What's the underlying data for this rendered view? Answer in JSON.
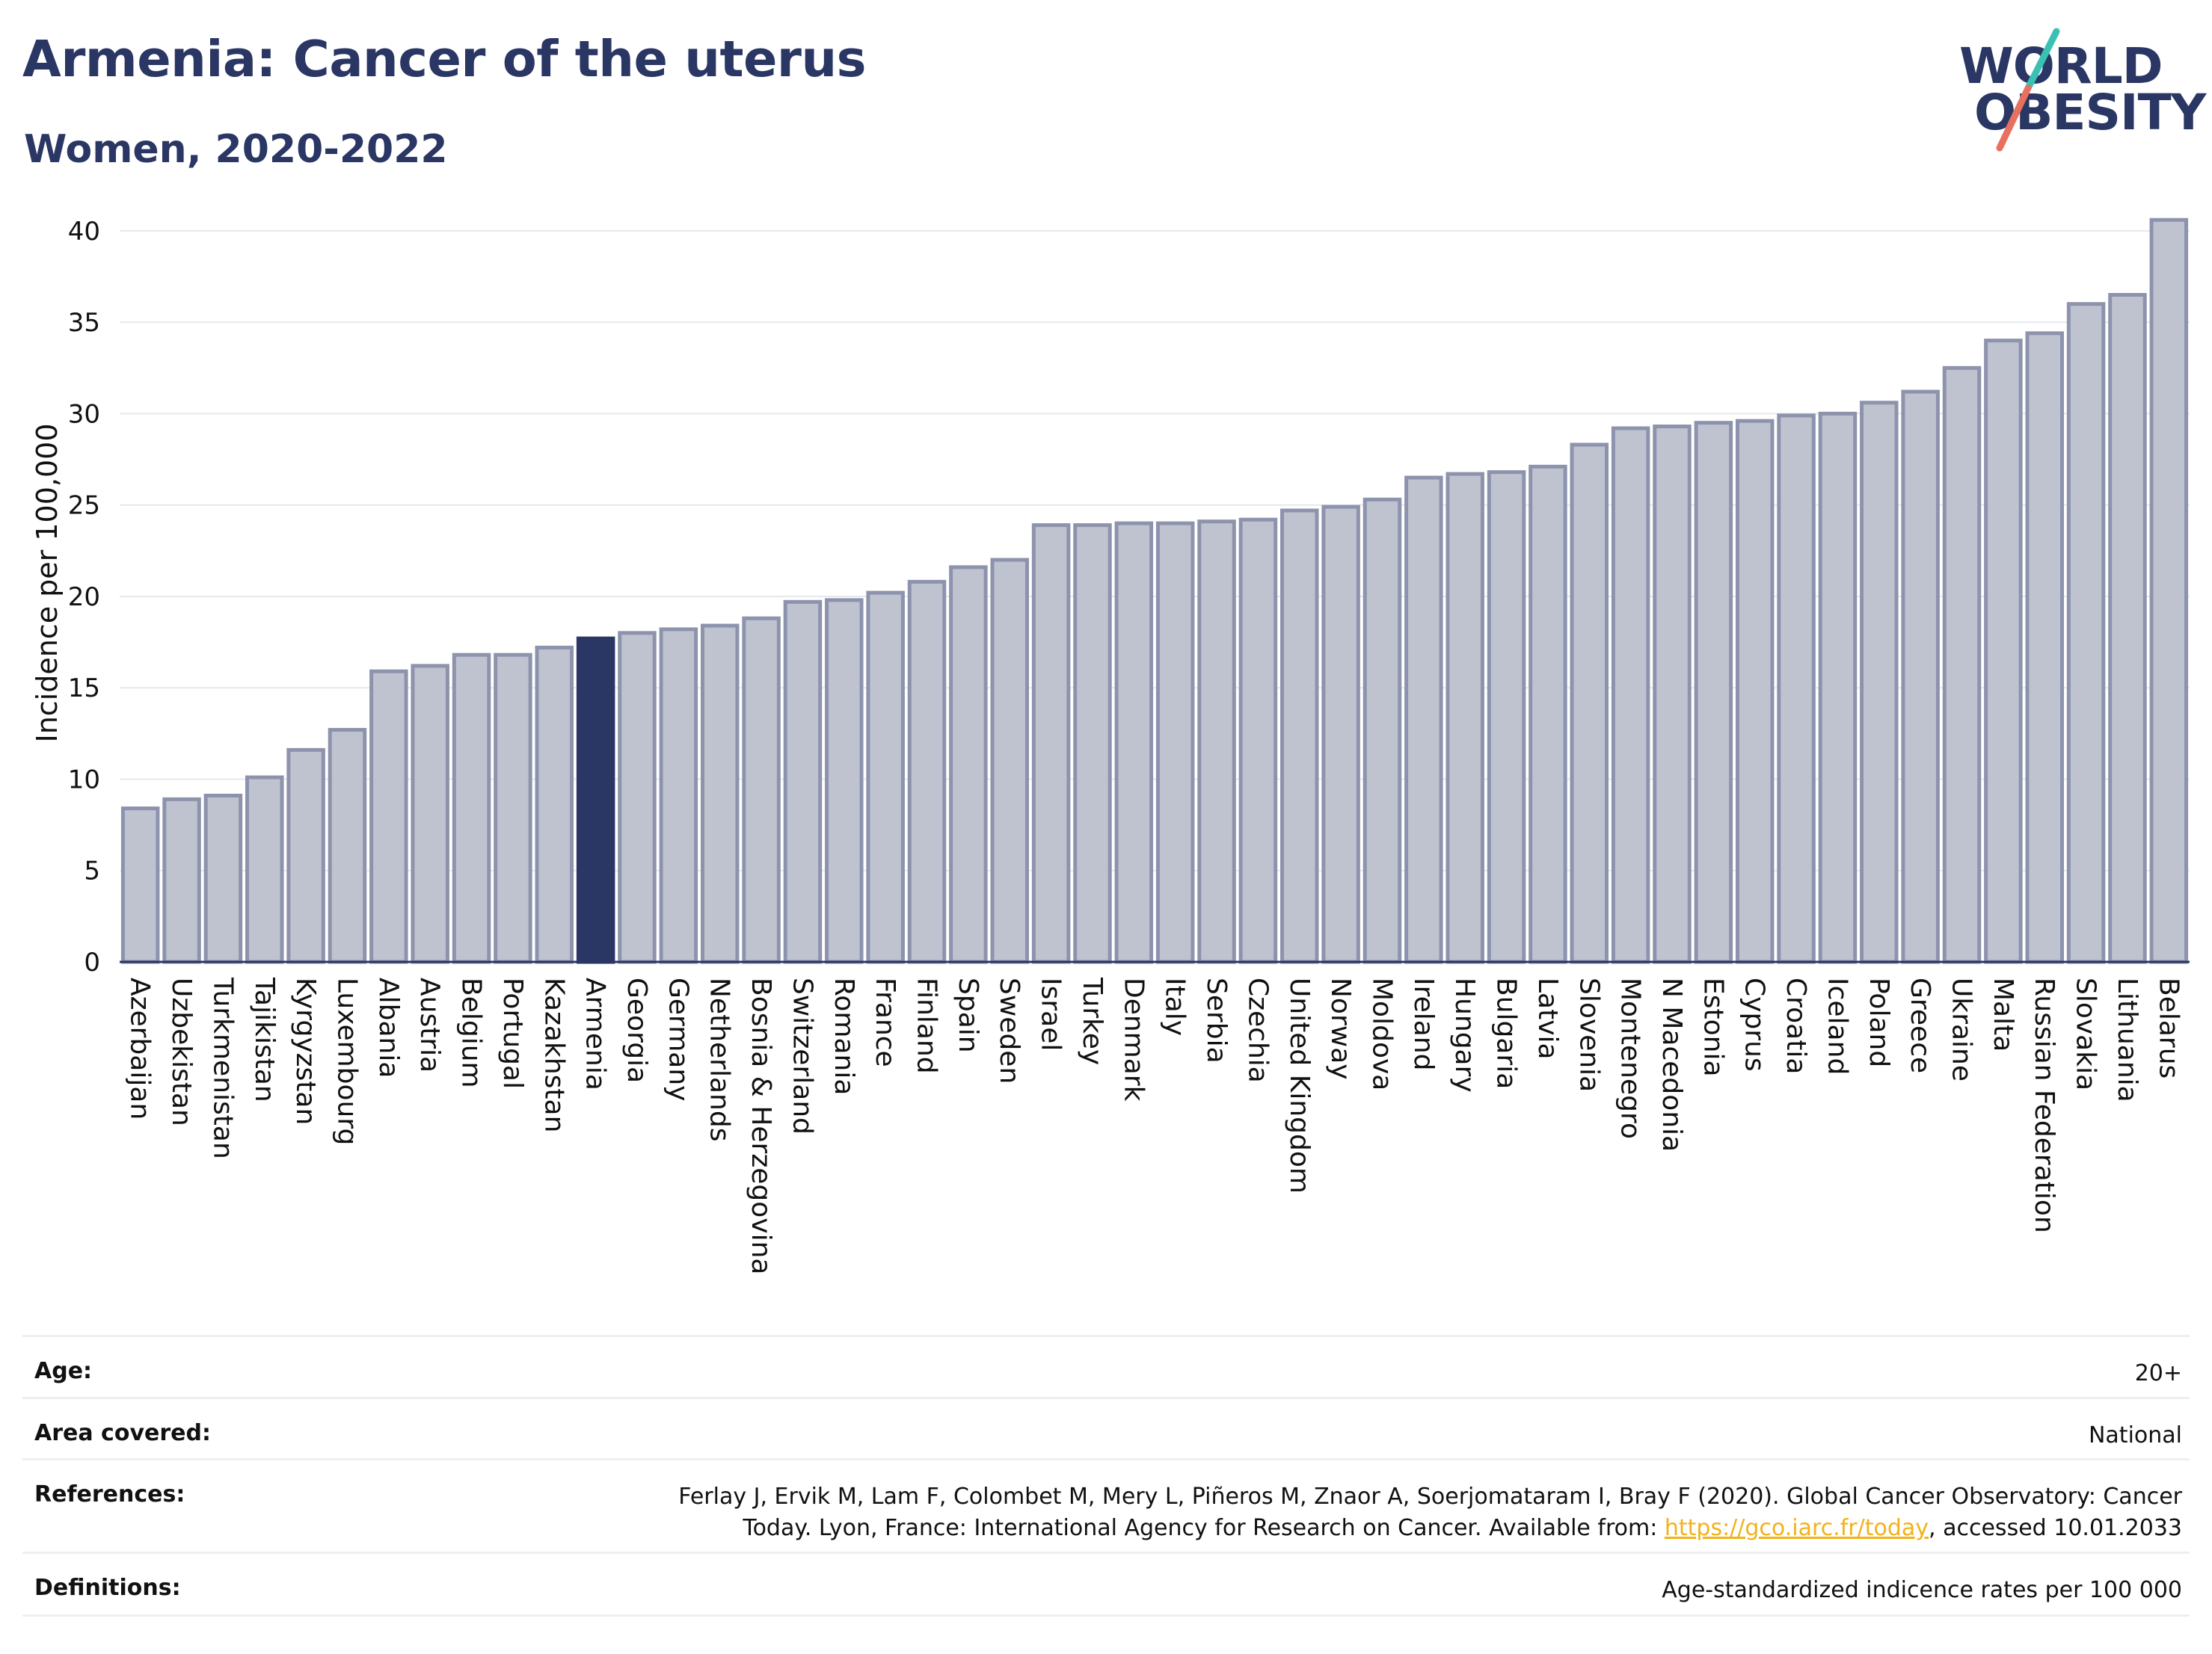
{
  "header": {
    "title": "Armenia: Cancer of the uterus",
    "subtitle": "Women, 2020-2022",
    "logo_line1": "WORLD",
    "logo_line2": "OBESITY"
  },
  "colors": {
    "bar": "#bfc3d0",
    "bar_stroke": "#8d93ac",
    "highlight": "#2a3663",
    "text": "#2a3663",
    "grid": "#e6e8ee",
    "link": "#f2b21a",
    "logo_teal": "#3ac1b4",
    "logo_coral": "#e8705f"
  },
  "chart_data": {
    "type": "bar",
    "ylabel": "Incidence per 100,000",
    "xlabel": "",
    "ylim": [
      0,
      42
    ],
    "yticks": [
      0,
      5,
      10,
      15,
      20,
      25,
      30,
      35,
      40
    ],
    "grid": true,
    "highlight": "Armenia",
    "categories": [
      "Azerbaijan",
      "Uzbekistan",
      "Turkmenistan",
      "Tajikistan",
      "Kyrgyzstan",
      "Luxembourg",
      "Albania",
      "Austria",
      "Belgium",
      "Portugal",
      "Kazakhstan",
      "Armenia",
      "Georgia",
      "Germany",
      "Netherlands",
      "Bosnia & Herzegovina",
      "Switzerland",
      "Romania",
      "France",
      "Finland",
      "Spain",
      "Sweden",
      "Israel",
      "Turkey",
      "Denmark",
      "Italy",
      "Serbia",
      "Czechia",
      "United Kingdom",
      "Norway",
      "Moldova",
      "Ireland",
      "Hungary",
      "Bulgaria",
      "Latvia",
      "Slovenia",
      "Montenegro",
      "N Macedonia",
      "Estonia",
      "Cyprus",
      "Croatia",
      "Iceland",
      "Poland",
      "Greece",
      "Ukraine",
      "Malta",
      "Russian Federation",
      "Slovakia",
      "Lithuania",
      "Belarus"
    ],
    "values": [
      8.4,
      8.9,
      9.1,
      10.1,
      11.6,
      12.7,
      15.9,
      16.2,
      16.8,
      16.8,
      17.2,
      17.7,
      18.0,
      18.2,
      18.4,
      18.8,
      19.7,
      19.8,
      20.2,
      20.8,
      21.6,
      22.0,
      23.9,
      23.9,
      24.0,
      24.0,
      24.1,
      24.2,
      24.7,
      24.9,
      25.3,
      26.5,
      26.7,
      26.8,
      27.1,
      28.3,
      29.2,
      29.3,
      29.5,
      29.6,
      29.9,
      30.0,
      30.6,
      31.2,
      32.5,
      34.0,
      34.4,
      36.0,
      36.5,
      40.6
    ]
  },
  "meta": {
    "age_label": "Age:",
    "age_value": "20+",
    "area_label": "Area covered:",
    "area_value": "National",
    "references_label": "References:",
    "references_line1": "Ferlay J, Ervik M, Lam F, Colombet M, Mery L, Piñeros M, Znaor A, Soerjomataram I, Bray F (2020). Global Cancer Observatory: Cancer",
    "references_line2_pre": "Today. Lyon, France: International Agency for Research on Cancer. Available from: ",
    "references_link": "https://gco.iarc.fr/today",
    "references_line2_post": ", accessed 10.01.2033",
    "definitions_label": "Definitions:",
    "definitions_value": "Age-standardized indicence rates per 100 000"
  }
}
